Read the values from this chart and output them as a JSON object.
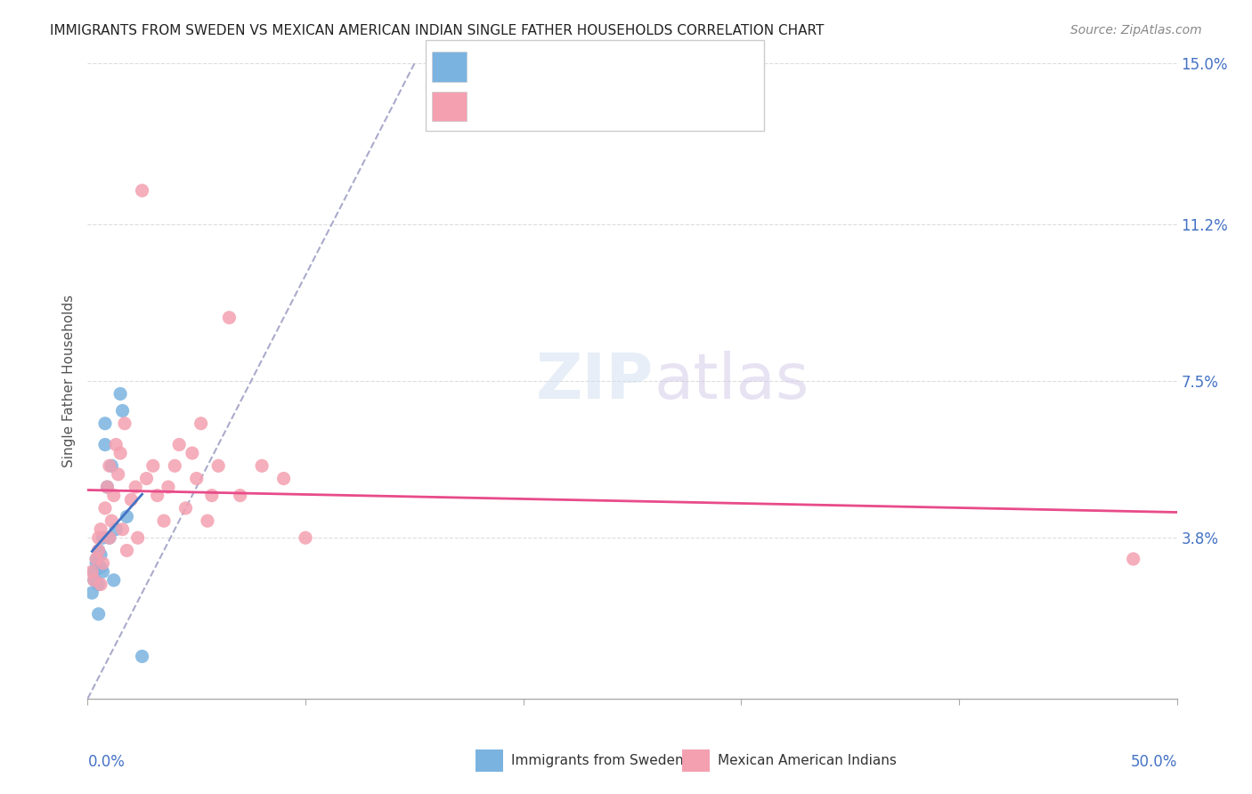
{
  "title": "IMMIGRANTS FROM SWEDEN VS MEXICAN AMERICAN INDIAN SINGLE FATHER HOUSEHOLDS CORRELATION CHART",
  "source": "Source: ZipAtlas.com",
  "ylabel": "Single Father Households",
  "xlim": [
    0,
    0.5
  ],
  "ylim": [
    0,
    0.15
  ],
  "ytick_labels_right": [
    "3.8%",
    "7.5%",
    "11.2%",
    "15.0%"
  ],
  "ytick_positions_right": [
    0.038,
    0.075,
    0.112,
    0.15
  ],
  "grid_color": "#dddddd",
  "background_color": "#ffffff",
  "blue_color": "#7ab3e0",
  "pink_color": "#f4a0b0",
  "blue_line_color": "#4472c4",
  "pink_line_color": "#e84b8a",
  "title_color": "#222222",
  "axis_label_color": "#555555",
  "tick_label_color": "#4472c4",
  "sweden_x": [
    0.002,
    0.003,
    0.003,
    0.004,
    0.004,
    0.005,
    0.005,
    0.005,
    0.006,
    0.006,
    0.007,
    0.007,
    0.008,
    0.008,
    0.009,
    0.01,
    0.011,
    0.012,
    0.013,
    0.015,
    0.016,
    0.018,
    0.025
  ],
  "sweden_y": [
    0.025,
    0.03,
    0.028,
    0.032,
    0.033,
    0.035,
    0.027,
    0.02,
    0.031,
    0.034,
    0.03,
    0.038,
    0.065,
    0.06,
    0.05,
    0.038,
    0.055,
    0.028,
    0.04,
    0.072,
    0.068,
    0.043,
    0.01
  ],
  "mex_x": [
    0.002,
    0.003,
    0.004,
    0.005,
    0.005,
    0.006,
    0.006,
    0.007,
    0.008,
    0.009,
    0.01,
    0.01,
    0.011,
    0.012,
    0.013,
    0.014,
    0.015,
    0.016,
    0.017,
    0.018,
    0.02,
    0.022,
    0.023,
    0.025,
    0.027,
    0.03,
    0.032,
    0.035,
    0.037,
    0.04,
    0.042,
    0.045,
    0.048,
    0.05,
    0.052,
    0.055,
    0.057,
    0.06,
    0.065,
    0.07,
    0.08,
    0.09,
    0.1,
    0.48
  ],
  "mex_y": [
    0.03,
    0.028,
    0.033,
    0.035,
    0.038,
    0.04,
    0.027,
    0.032,
    0.045,
    0.05,
    0.038,
    0.055,
    0.042,
    0.048,
    0.06,
    0.053,
    0.058,
    0.04,
    0.065,
    0.035,
    0.047,
    0.05,
    0.038,
    0.12,
    0.052,
    0.055,
    0.048,
    0.042,
    0.05,
    0.055,
    0.06,
    0.045,
    0.058,
    0.052,
    0.065,
    0.042,
    0.048,
    0.055,
    0.09,
    0.048,
    0.055,
    0.052,
    0.038,
    0.033
  ]
}
